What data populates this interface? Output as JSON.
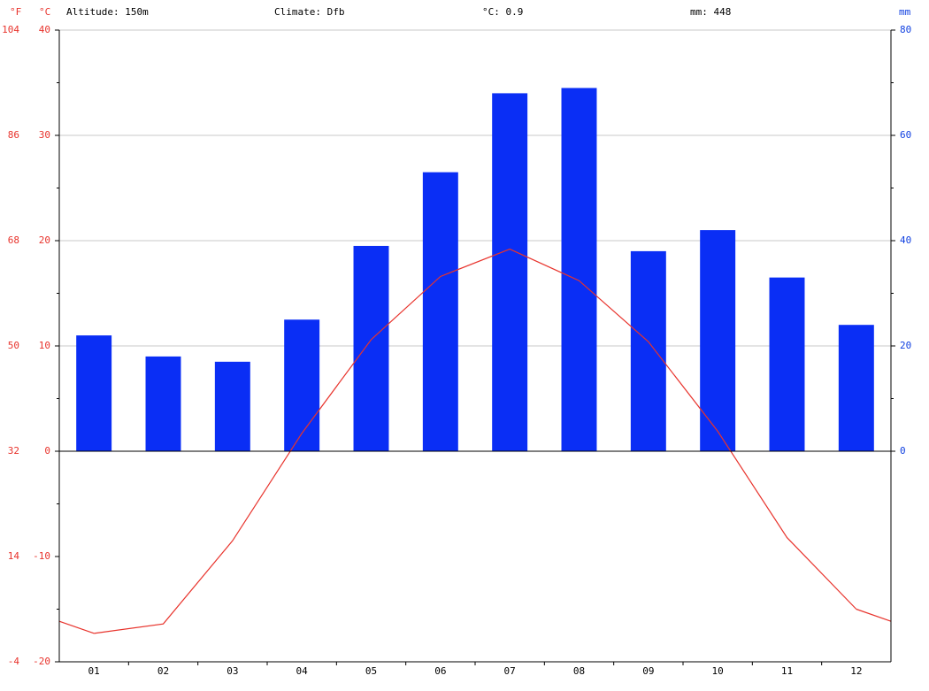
{
  "chart_data": {
    "type": "bar-line",
    "header": [
      "Altitude: 150m",
      "Climate: Dfb",
      "°C: 0.9",
      "mm: 448"
    ],
    "ylabel": "°C",
    "y2label": "mm",
    "y3label": "°F",
    "categories": [
      "01",
      "02",
      "03",
      "04",
      "05",
      "06",
      "07",
      "08",
      "09",
      "10",
      "11",
      "12"
    ],
    "series": [
      {
        "type": "bar",
        "axis": "y2",
        "color": "#0a2ef5",
        "values": [
          22,
          18,
          17,
          25,
          39,
          53,
          68,
          69,
          38,
          42,
          33,
          24
        ]
      },
      {
        "type": "line",
        "color": "#e8332c",
        "values": [
          -17.3,
          -16.4,
          -8.5,
          1.7,
          10.6,
          16.6,
          19.2,
          16.2,
          10.4,
          1.9,
          -8.2,
          -15.0
        ]
      }
    ],
    "ylim": [
      -20,
      40
    ],
    "yticks": [
      -20,
      -10,
      0,
      10,
      20,
      30,
      40
    ],
    "y2lim": [
      -40,
      80
    ],
    "y2ticks": [
      0,
      20,
      40,
      60,
      80
    ],
    "y3lim": [
      -4,
      104
    ],
    "y3ticks": [
      -4,
      14,
      32,
      50,
      68,
      86,
      104
    ],
    "grid": true
  }
}
